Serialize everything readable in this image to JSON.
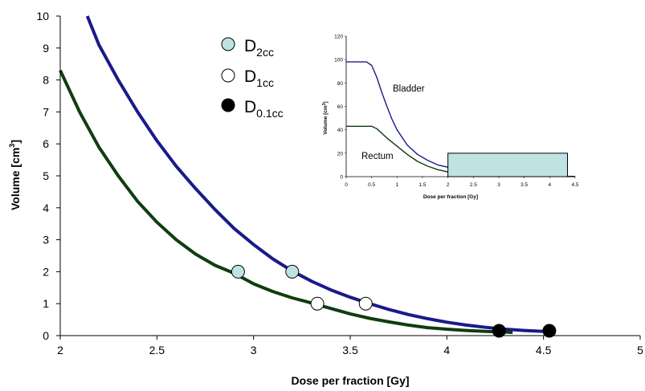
{
  "chart_data": [
    {
      "type": "line",
      "xlabel": "Dose per fraction [Gy]",
      "ylabel": "Volume [cm³]",
      "ylabel_main": "Volume [cm",
      "ylabel_sup": "3",
      "ylabel_tail": "]",
      "xlim": [
        2,
        5
      ],
      "ylim": [
        0,
        10
      ],
      "x_ticks": [
        "2",
        "2.5",
        "3",
        "3.5",
        "4",
        "4.5",
        "5"
      ],
      "y_ticks": [
        "0",
        "1",
        "2",
        "3",
        "4",
        "5",
        "6",
        "7",
        "8",
        "9",
        "10"
      ],
      "grid": false,
      "series": [
        {
          "color": "#1a1a8c",
          "points": [
            [
              2.14,
              10
            ],
            [
              2.2,
              9.1
            ],
            [
              2.3,
              8.0
            ],
            [
              2.4,
              7.0
            ],
            [
              2.5,
              6.1
            ],
            [
              2.6,
              5.3
            ],
            [
              2.7,
              4.6
            ],
            [
              2.8,
              3.95
            ],
            [
              2.9,
              3.35
            ],
            [
              3.0,
              2.85
            ],
            [
              3.1,
              2.4
            ],
            [
              3.2,
              2.02
            ],
            [
              3.3,
              1.7
            ],
            [
              3.4,
              1.43
            ],
            [
              3.5,
              1.2
            ],
            [
              3.6,
              1.0
            ],
            [
              3.7,
              0.82
            ],
            [
              3.8,
              0.66
            ],
            [
              3.9,
              0.53
            ],
            [
              4.0,
              0.42
            ],
            [
              4.1,
              0.33
            ],
            [
              4.2,
              0.26
            ],
            [
              4.3,
              0.2
            ],
            [
              4.4,
              0.16
            ],
            [
              4.5,
              0.13
            ],
            [
              4.56,
              0.12
            ]
          ]
        },
        {
          "color": "#0f3d0f",
          "points": [
            [
              2.0,
              8.3
            ],
            [
              2.1,
              7.0
            ],
            [
              2.2,
              5.9
            ],
            [
              2.3,
              5.0
            ],
            [
              2.4,
              4.2
            ],
            [
              2.5,
              3.55
            ],
            [
              2.6,
              3.0
            ],
            [
              2.7,
              2.55
            ],
            [
              2.8,
              2.2
            ],
            [
              2.9,
              1.95
            ],
            [
              3.0,
              1.62
            ],
            [
              3.1,
              1.38
            ],
            [
              3.2,
              1.18
            ],
            [
              3.3,
              1.02
            ],
            [
              3.4,
              0.85
            ],
            [
              3.5,
              0.68
            ],
            [
              3.6,
              0.54
            ],
            [
              3.7,
              0.43
            ],
            [
              3.8,
              0.33
            ],
            [
              3.9,
              0.25
            ],
            [
              4.0,
              0.2
            ],
            [
              4.1,
              0.16
            ],
            [
              4.2,
              0.13
            ],
            [
              4.3,
              0.11
            ],
            [
              4.34,
              0.1
            ]
          ]
        }
      ],
      "markers": [
        {
          "group": "D2cc",
          "x": 2.92,
          "y": 2.0
        },
        {
          "group": "D2cc",
          "x": 3.2,
          "y": 2.0
        },
        {
          "group": "D1cc",
          "x": 3.33,
          "y": 1.0
        },
        {
          "group": "D1cc",
          "x": 3.58,
          "y": 1.0
        },
        {
          "group": "D0.1cc",
          "x": 4.27,
          "y": 0.15
        },
        {
          "group": "D0.1cc",
          "x": 4.53,
          "y": 0.15
        }
      ],
      "legend": [
        {
          "key": "D2cc",
          "main": "D",
          "sub": "2cc",
          "fill": "#bfe3e3"
        },
        {
          "key": "D1cc",
          "main": "D",
          "sub": "1cc",
          "fill": "#ffffff"
        },
        {
          "key": "D0.1cc",
          "main": "D",
          "sub": "0.1cc",
          "fill": "#000000"
        }
      ]
    },
    {
      "type": "line",
      "xlabel": "Dose per fraction [Gy]",
      "ylabel_main": "Volume [cm",
      "ylabel_sup": "3",
      "ylabel_tail": "]",
      "xlim": [
        0,
        4.5
      ],
      "ylim": [
        0,
        120
      ],
      "x_ticks": [
        "0",
        "0.5",
        "1",
        "1.5",
        "2",
        "2.5",
        "3",
        "3.5",
        "4",
        "4.5"
      ],
      "y_ticks": [
        "0",
        "20",
        "40",
        "60",
        "80",
        "100",
        "120"
      ],
      "series": [
        {
          "name": "Bladder",
          "color": "#1a1a8c",
          "points": [
            [
              0,
              98
            ],
            [
              0.4,
              98
            ],
            [
              0.5,
              95
            ],
            [
              0.6,
              85
            ],
            [
              0.7,
              72
            ],
            [
              0.8,
              60
            ],
            [
              0.9,
              49
            ],
            [
              1.0,
              40
            ],
            [
              1.2,
              27
            ],
            [
              1.4,
              19
            ],
            [
              1.6,
              14
            ],
            [
              1.8,
              10
            ],
            [
              2.0,
              8
            ],
            [
              2.2,
              5
            ],
            [
              2.6,
              2.5
            ],
            [
              3.0,
              1.5
            ],
            [
              3.5,
              0.8
            ],
            [
              4.0,
              0.4
            ],
            [
              4.5,
              0.2
            ]
          ]
        },
        {
          "name": "Rectum",
          "color": "#0f3d0f",
          "points": [
            [
              0,
              43
            ],
            [
              0.5,
              43
            ],
            [
              0.6,
              41
            ],
            [
              0.8,
              33
            ],
            [
              1.0,
              26
            ],
            [
              1.2,
              19
            ],
            [
              1.4,
              13
            ],
            [
              1.6,
              9
            ],
            [
              1.8,
              6
            ],
            [
              2.0,
              4
            ],
            [
              2.4,
              2
            ],
            [
              3.0,
              1
            ],
            [
              3.5,
              0.5
            ],
            [
              4.0,
              0.2
            ],
            [
              4.5,
              0.1
            ]
          ]
        }
      ],
      "highlight_box": {
        "x0": 2.0,
        "x1": 4.35,
        "y0": 0,
        "y1": 20,
        "fill": "#bfe3e3"
      }
    }
  ]
}
